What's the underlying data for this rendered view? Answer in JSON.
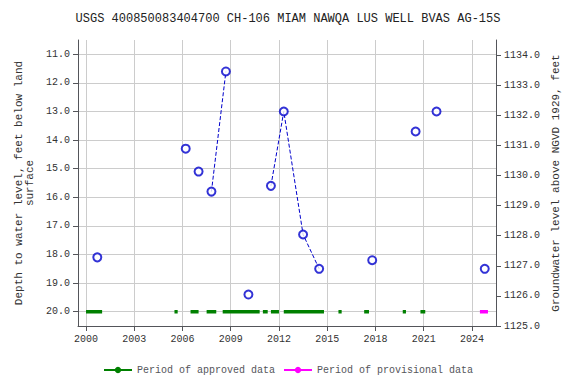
{
  "chart_data": {
    "type": "line",
    "title": "USGS 400850083404700 CH-106 MIAM NAWQA LUS WELL BVAS AG-15S",
    "ylabel": "Depth to water level, feet below land\nsurface",
    "y2label": "Groundwater level above NGVD 1929, feet",
    "xlim": [
      1999.5,
      2025.5
    ],
    "xticks": [
      2000,
      2003,
      2006,
      2009,
      2012,
      2015,
      2018,
      2021,
      2024
    ],
    "ylim": [
      20.5,
      10.5
    ],
    "yticks": [
      {
        "value": 11.0,
        "label": "11.0"
      },
      {
        "value": 12.0,
        "label": "12.0"
      },
      {
        "value": 13.0,
        "label": "13.0"
      },
      {
        "value": 14.0,
        "label": "14.0"
      },
      {
        "value": 15.0,
        "label": "15.0"
      },
      {
        "value": 16.0,
        "label": "16.0"
      },
      {
        "value": 17.0,
        "label": "17.0"
      },
      {
        "value": 18.0,
        "label": "18.0"
      },
      {
        "value": 19.0,
        "label": "19.0"
      },
      {
        "value": 20.0,
        "label": "20.0"
      }
    ],
    "y2lim": [
      1125.0,
      1134.5
    ],
    "y2ticks": [
      {
        "value": 1125.0,
        "label": "1125.0"
      },
      {
        "value": 1126.0,
        "label": "1126.0"
      },
      {
        "value": 1127.0,
        "label": "1127.0"
      },
      {
        "value": 1128.0,
        "label": "1128.0"
      },
      {
        "value": 1129.0,
        "label": "1129.0"
      },
      {
        "value": 1130.0,
        "label": "1130.0"
      },
      {
        "value": 1131.0,
        "label": "1131.0"
      },
      {
        "value": 1132.0,
        "label": "1132.0"
      },
      {
        "value": 1133.0,
        "label": "1133.0"
      },
      {
        "value": 1134.0,
        "label": "1134.0"
      }
    ],
    "grid": true,
    "legend": "bottom",
    "series": [
      {
        "name": "Period of approved data",
        "type": "segments",
        "color": "#008000",
        "y": 20.0,
        "segments": [
          [
            2000.0,
            2001.0
          ],
          [
            2005.5,
            2005.7
          ],
          [
            2006.5,
            2007.0
          ],
          [
            2007.5,
            2008.1
          ],
          [
            2008.5,
            2010.8
          ],
          [
            2011.0,
            2011.3
          ],
          [
            2011.5,
            2012.0
          ],
          [
            2012.3,
            2014.8
          ],
          [
            2015.7,
            2015.9
          ],
          [
            2017.3,
            2017.6
          ],
          [
            2019.7,
            2019.9
          ],
          [
            2020.8,
            2021.1
          ]
        ]
      },
      {
        "name": "Period of provisional data",
        "type": "segments",
        "color": "#ff00ff",
        "y": 20.0,
        "segments": [
          [
            2024.5,
            2025.0
          ]
        ]
      },
      {
        "type": "line",
        "line_style": "dashed",
        "color": "#0000cc",
        "x": [
          2007.8,
          2008.7
        ],
        "values": [
          15.8,
          11.6
        ]
      },
      {
        "type": "line",
        "line_style": "dashed",
        "color": "#0000cc",
        "x": [
          2011.5,
          2012.3,
          2013.5,
          2014.5
        ],
        "values": [
          15.6,
          13.0,
          17.3,
          18.5
        ]
      },
      {
        "type": "scatter",
        "marker": "open_circle",
        "color": "#0000cc",
        "x": [
          2000.7,
          2006.2,
          2007.0,
          2007.8,
          2008.7,
          2011.5,
          2012.3,
          2013.5,
          2014.5,
          2017.8,
          2020.5,
          2021.8,
          2024.8
        ],
        "values": [
          18.1,
          14.3,
          15.1,
          15.8,
          11.6,
          15.6,
          13.0,
          17.3,
          18.5,
          18.2,
          13.7,
          13.0,
          18.5
        ]
      },
      {
        "type": "scatter",
        "marker": "open_circle",
        "color": "#0000cc",
        "x": [
          2010.1
        ],
        "values": [
          19.4
        ]
      }
    ]
  }
}
